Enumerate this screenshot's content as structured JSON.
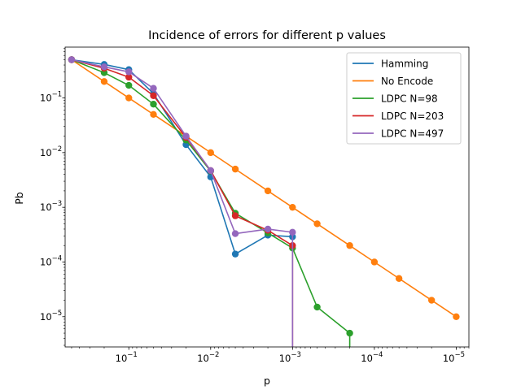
{
  "chart_data": {
    "type": "line",
    "title": "Incidence of errors for different p values",
    "xlabel": "p",
    "ylabel": "Pb",
    "xscale": "log",
    "yscale": "log",
    "x_inverted": true,
    "xlim": [
      0.6,
      7e-06
    ],
    "ylim": [
      2.8e-06,
      0.85
    ],
    "x_ticks": [
      {
        "value": 0.1,
        "mant": "10",
        "exp": "−1"
      },
      {
        "value": 0.01,
        "mant": "10",
        "exp": "−2"
      },
      {
        "value": 0.001,
        "mant": "10",
        "exp": "−3"
      },
      {
        "value": 0.0001,
        "mant": "10",
        "exp": "−4"
      },
      {
        "value": 1e-05,
        "mant": "10",
        "exp": "−5"
      }
    ],
    "y_ticks": [
      {
        "value": 0.1,
        "mant": "10",
        "exp": "−1"
      },
      {
        "value": 0.01,
        "mant": "10",
        "exp": "−2"
      },
      {
        "value": 0.001,
        "mant": "10",
        "exp": "−3"
      },
      {
        "value": 0.0001,
        "mant": "10",
        "exp": "−4"
      },
      {
        "value": 1e-05,
        "mant": "10",
        "exp": "−5"
      }
    ],
    "legend_position": "top-right",
    "series": [
      {
        "name": "Hamming",
        "color": "#1f77b4",
        "points": [
          [
            0.5,
            0.5
          ],
          [
            0.2,
            0.41
          ],
          [
            0.1,
            0.33
          ],
          [
            0.05,
            0.12
          ],
          [
            0.02,
            0.014
          ],
          [
            0.01,
            0.0036
          ],
          [
            0.005,
            0.00014
          ],
          [
            0.002,
            0.00031
          ],
          [
            0.001,
            0.00029
          ]
        ]
      },
      {
        "name": "No Encode",
        "color": "#ff7f0e",
        "points": [
          [
            0.5,
            0.5
          ],
          [
            0.2,
            0.2
          ],
          [
            0.1,
            0.1
          ],
          [
            0.05,
            0.05
          ],
          [
            0.02,
            0.02
          ],
          [
            0.01,
            0.01
          ],
          [
            0.005,
            0.005
          ],
          [
            0.002,
            0.002
          ],
          [
            0.001,
            0.001
          ],
          [
            0.0005,
            0.0005
          ],
          [
            0.0002,
            0.0002
          ],
          [
            0.0001,
            0.0001
          ],
          [
            5e-05,
            5e-05
          ],
          [
            2e-05,
            2e-05
          ],
          [
            1e-05,
            1e-05
          ]
        ]
      },
      {
        "name": "LDPC N=98",
        "color": "#2ca02c",
        "points": [
          [
            0.5,
            0.5
          ],
          [
            0.2,
            0.29
          ],
          [
            0.1,
            0.17
          ],
          [
            0.05,
            0.077
          ],
          [
            0.02,
            0.017
          ],
          [
            0.01,
            0.0046
          ],
          [
            0.005,
            0.00078
          ],
          [
            0.002,
            0.00034
          ],
          [
            0.001,
            0.00018
          ],
          [
            0.0005,
            1.5e-05
          ],
          [
            0.0002,
            5e-06
          ],
          [
            0.0002,
            2.8e-06
          ]
        ]
      },
      {
        "name": "LDPC N=203",
        "color": "#d62728",
        "points": [
          [
            0.5,
            0.5
          ],
          [
            0.2,
            0.35
          ],
          [
            0.1,
            0.24
          ],
          [
            0.05,
            0.11
          ],
          [
            0.02,
            0.019
          ],
          [
            0.01,
            0.0047
          ],
          [
            0.005,
            0.0007
          ],
          [
            0.002,
            0.00038
          ],
          [
            0.001,
            0.0002
          ],
          [
            0.001,
            2.8e-06
          ]
        ]
      },
      {
        "name": "LDPC N=497",
        "color": "#9467bd",
        "points": [
          [
            0.5,
            0.5
          ],
          [
            0.2,
            0.37
          ],
          [
            0.1,
            0.3
          ],
          [
            0.05,
            0.15
          ],
          [
            0.02,
            0.02
          ],
          [
            0.01,
            0.0047
          ],
          [
            0.005,
            0.00033
          ],
          [
            0.002,
            0.0004
          ],
          [
            0.001,
            0.00035
          ],
          [
            0.001,
            2.8e-06
          ]
        ]
      }
    ]
  }
}
